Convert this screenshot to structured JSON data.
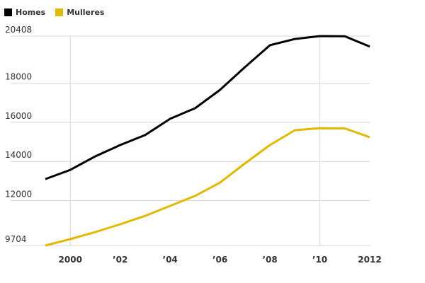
{
  "legend": [
    {
      "label": "Homes",
      "color": "#000000"
    },
    {
      "label": "Mulleres",
      "color": "#e3b800"
    }
  ],
  "chart_data": {
    "type": "line",
    "title": "",
    "xlabel": "",
    "ylabel": "",
    "x": [
      1999,
      2000,
      2001,
      2002,
      2003,
      2004,
      2005,
      2006,
      2007,
      2008,
      2009,
      2010,
      2011,
      2012
    ],
    "x_tick_labels": [
      {
        "year": 2000,
        "label": "2000"
      },
      {
        "year": 2002,
        "label": "’02"
      },
      {
        "year": 2004,
        "label": "’04"
      },
      {
        "year": 2006,
        "label": "’06"
      },
      {
        "year": 2008,
        "label": "’08"
      },
      {
        "year": 2010,
        "label": "’10"
      },
      {
        "year": 2012,
        "label": "2012"
      }
    ],
    "y_tick_labels": [
      "20408",
      "18000",
      "16000",
      "14000",
      "12000",
      "9704"
    ],
    "y_ticks": [
      20408,
      18000,
      16000,
      14000,
      12000,
      9704
    ],
    "ylim": [
      9704,
      20408
    ],
    "grid": true,
    "legend_position": "top-left",
    "series": [
      {
        "name": "Homes",
        "color": "#000000",
        "values": [
          13100,
          13570,
          14260,
          14840,
          15350,
          16180,
          16720,
          17660,
          18820,
          19940,
          20260,
          20408,
          20400,
          19870
        ]
      },
      {
        "name": "Mulleres",
        "color": "#e3b800",
        "values": [
          9704,
          10030,
          10390,
          10790,
          11220,
          11730,
          12240,
          12920,
          13900,
          14840,
          15600,
          15700,
          15690,
          15240
        ]
      }
    ]
  }
}
